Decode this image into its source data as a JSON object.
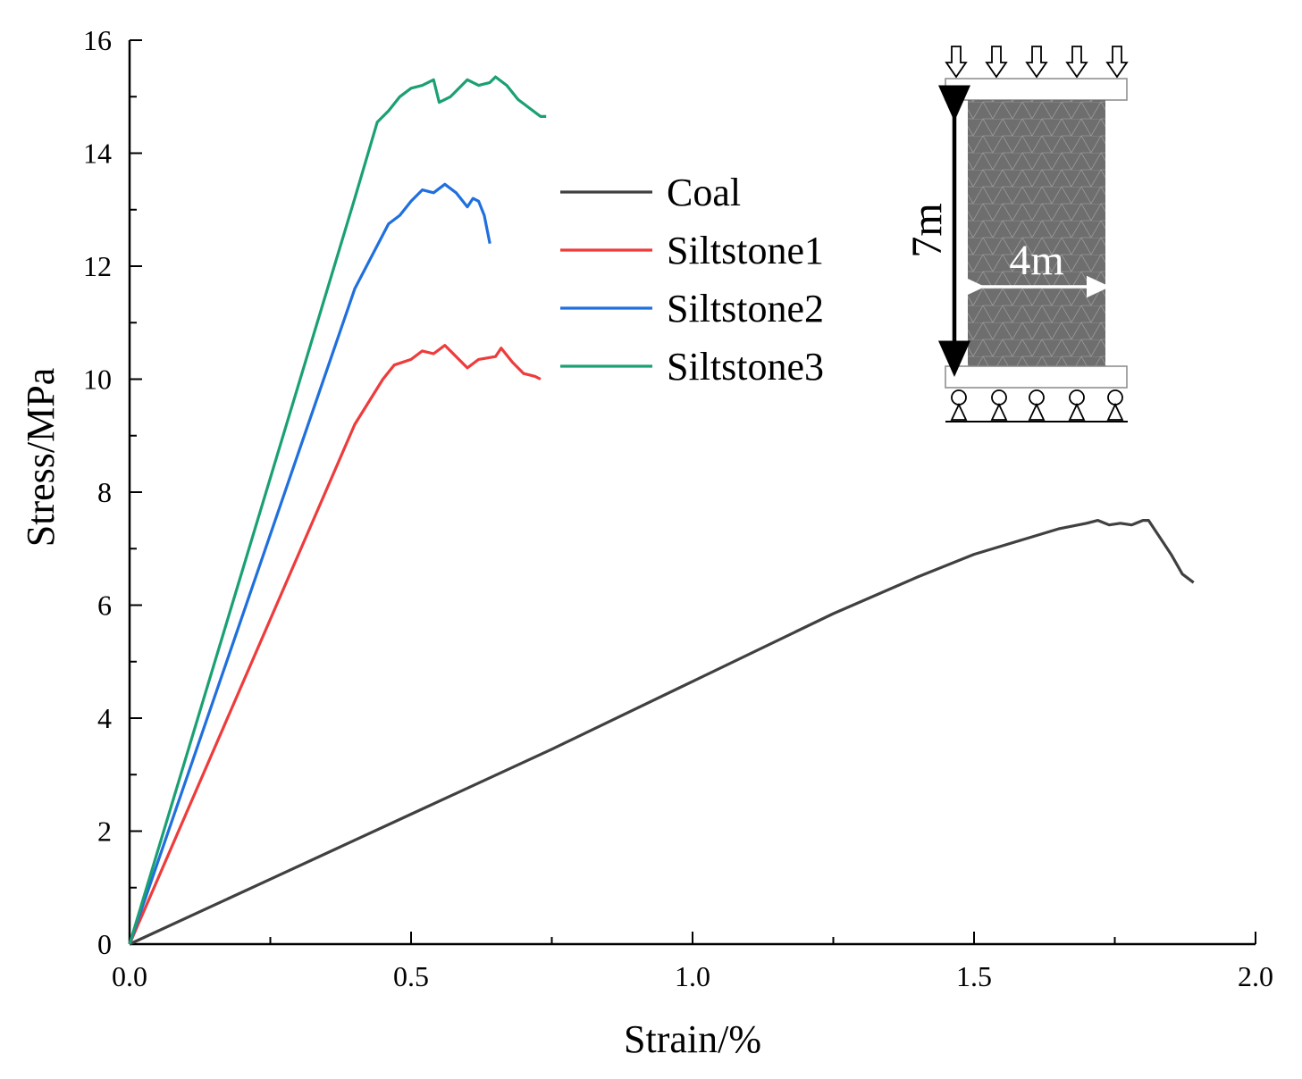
{
  "chart_data": {
    "type": "line",
    "title": "",
    "xlabel": "Strain/%",
    "ylabel": "Stress/MPa",
    "xlim": [
      0,
      2.0
    ],
    "ylim": [
      0,
      16
    ],
    "x_ticks": [
      "0.0",
      "0.5",
      "1.0",
      "1.5",
      "2.0"
    ],
    "y_ticks": [
      "0",
      "2",
      "4",
      "6",
      "8",
      "10",
      "12",
      "14",
      "16"
    ],
    "grid": false,
    "legend_position": "top-center",
    "series": [
      {
        "name": "Coal",
        "color": "#404040",
        "points": [
          [
            0,
            0
          ],
          [
            0.25,
            1.15
          ],
          [
            0.5,
            2.3
          ],
          [
            0.75,
            3.45
          ],
          [
            1.0,
            4.65
          ],
          [
            1.25,
            5.85
          ],
          [
            1.4,
            6.5
          ],
          [
            1.5,
            6.9
          ],
          [
            1.55,
            7.05
          ],
          [
            1.6,
            7.2
          ],
          [
            1.65,
            7.35
          ],
          [
            1.7,
            7.45
          ],
          [
            1.72,
            7.5
          ],
          [
            1.74,
            7.42
          ],
          [
            1.76,
            7.45
          ],
          [
            1.78,
            7.42
          ],
          [
            1.8,
            7.5
          ],
          [
            1.81,
            7.5
          ],
          [
            1.83,
            7.2
          ],
          [
            1.85,
            6.9
          ],
          [
            1.87,
            6.55
          ],
          [
            1.89,
            6.4
          ]
        ]
      },
      {
        "name": "Siltstone1",
        "color": "#ee3b3b",
        "points": [
          [
            0,
            0
          ],
          [
            0.1,
            2.3
          ],
          [
            0.2,
            4.6
          ],
          [
            0.3,
            6.9
          ],
          [
            0.4,
            9.2
          ],
          [
            0.45,
            10.0
          ],
          [
            0.47,
            10.25
          ],
          [
            0.5,
            10.35
          ],
          [
            0.52,
            10.5
          ],
          [
            0.54,
            10.45
          ],
          [
            0.56,
            10.6
          ],
          [
            0.58,
            10.4
          ],
          [
            0.6,
            10.2
          ],
          [
            0.62,
            10.35
          ],
          [
            0.65,
            10.4
          ],
          [
            0.66,
            10.55
          ],
          [
            0.68,
            10.3
          ],
          [
            0.7,
            10.1
          ],
          [
            0.72,
            10.05
          ],
          [
            0.73,
            10.0
          ]
        ]
      },
      {
        "name": "Siltstone2",
        "color": "#1f6fdd",
        "points": [
          [
            0,
            0
          ],
          [
            0.1,
            2.9
          ],
          [
            0.2,
            5.8
          ],
          [
            0.3,
            8.7
          ],
          [
            0.4,
            11.6
          ],
          [
            0.46,
            12.75
          ],
          [
            0.48,
            12.9
          ],
          [
            0.5,
            13.15
          ],
          [
            0.52,
            13.35
          ],
          [
            0.54,
            13.3
          ],
          [
            0.56,
            13.45
          ],
          [
            0.58,
            13.3
          ],
          [
            0.6,
            13.05
          ],
          [
            0.61,
            13.2
          ],
          [
            0.62,
            13.15
          ],
          [
            0.63,
            12.9
          ],
          [
            0.64,
            12.4
          ]
        ]
      },
      {
        "name": "Siltstone3",
        "color": "#1aa073",
        "points": [
          [
            0,
            0
          ],
          [
            0.1,
            3.3
          ],
          [
            0.2,
            6.6
          ],
          [
            0.3,
            9.9
          ],
          [
            0.4,
            13.2
          ],
          [
            0.44,
            14.55
          ],
          [
            0.46,
            14.75
          ],
          [
            0.48,
            15.0
          ],
          [
            0.5,
            15.15
          ],
          [
            0.52,
            15.2
          ],
          [
            0.54,
            15.3
          ],
          [
            0.55,
            14.9
          ],
          [
            0.57,
            15.0
          ],
          [
            0.6,
            15.3
          ],
          [
            0.62,
            15.2
          ],
          [
            0.64,
            15.25
          ],
          [
            0.65,
            15.35
          ],
          [
            0.67,
            15.2
          ],
          [
            0.69,
            14.95
          ],
          [
            0.71,
            14.8
          ],
          [
            0.73,
            14.65
          ],
          [
            0.74,
            14.65
          ]
        ]
      }
    ],
    "inset": {
      "height_label": "7m",
      "width_label": "4m",
      "colors": {
        "specimen": "#6e6e6e",
        "mesh": "#9a9a9a",
        "plate": "#ffffff"
      }
    }
  }
}
